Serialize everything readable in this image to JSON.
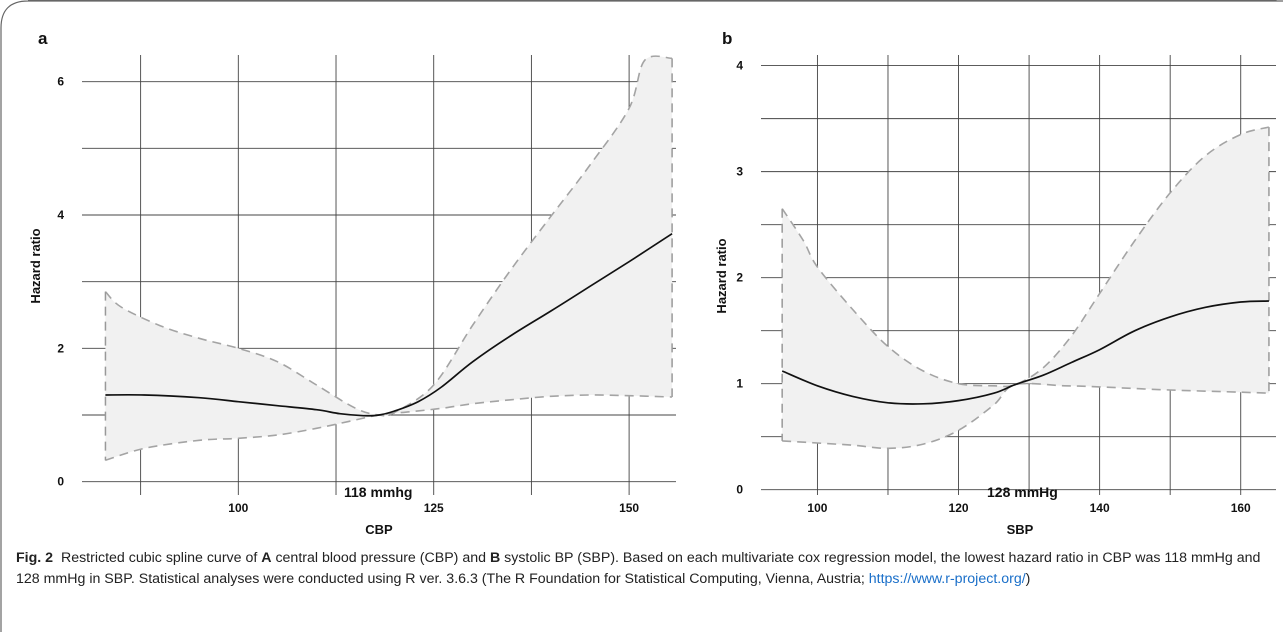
{
  "figure": {
    "panels": [
      {
        "letter": "a",
        "xlabel": "CBP",
        "ylabel": "Hazard ratio",
        "xticks": [
          {
            "value": 100,
            "label": "100"
          },
          {
            "value": 125,
            "label": "125"
          },
          {
            "value": 150,
            "label": "150"
          }
        ],
        "yticks": [
          {
            "value": 0,
            "label": "0"
          },
          {
            "value": 2,
            "label": "2"
          },
          {
            "value": 4,
            "label": "4"
          },
          {
            "value": 6,
            "label": "6"
          }
        ],
        "annotation": "118 mmhg"
      },
      {
        "letter": "b",
        "xlabel": "SBP",
        "ylabel": "Hazard ratio",
        "xticks": [
          {
            "value": 100,
            "label": "100"
          },
          {
            "value": 120,
            "label": "120"
          },
          {
            "value": 140,
            "label": "140"
          },
          {
            "value": 160,
            "label": "160"
          }
        ],
        "yticks": [
          {
            "value": 0,
            "label": "0"
          },
          {
            "value": 1,
            "label": "1"
          },
          {
            "value": 2,
            "label": "2"
          },
          {
            "value": 3,
            "label": "3"
          },
          {
            "value": 4,
            "label": "4"
          }
        ],
        "annotation": "128 mmHg"
      }
    ]
  },
  "caption": {
    "label": "Fig. 2",
    "seg1": "Restricted cubic spline curve of ",
    "bold_a": "A",
    "seg2": " central blood pressure (CBP) and ",
    "bold_b": "B",
    "seg3": " systolic BP (SBP). Based on each multivariate cox regression model, the lowest hazard ratio in CBP was 118 mmHg and 128 mmHg in SBP. Statistical analyses were conducted using R ver. 3.6.3 (The R Foundation for Statistical Computing, Vienna, Austria; ",
    "link": "https://www.r-project.org/",
    "seg4": ")"
  },
  "chart_data": [
    {
      "type": "line",
      "xlabel": "CBP",
      "ylabel": "Hazard ratio",
      "xlim": [
        80,
        156
      ],
      "ylim": [
        -0.2,
        6.4
      ],
      "grid": true,
      "series": [
        {
          "role": "estimate",
          "style": "solid",
          "x": [
            83,
            88,
            95,
            100,
            105,
            110,
            113,
            116,
            118,
            120,
            123,
            126,
            130,
            135,
            140,
            145,
            150,
            155.5
          ],
          "y": [
            1.3,
            1.3,
            1.26,
            1.2,
            1.14,
            1.08,
            1.02,
            0.99,
            1.0,
            1.06,
            1.2,
            1.42,
            1.8,
            2.2,
            2.56,
            2.93,
            3.3,
            3.72
          ]
        },
        {
          "role": "ci-upper",
          "style": "dashed",
          "x": [
            83,
            85,
            90,
            95,
            100,
            105,
            110,
            115,
            118,
            120,
            125,
            130,
            135,
            140,
            145,
            150,
            152,
            155.5
          ],
          "y": [
            2.85,
            2.62,
            2.34,
            2.15,
            2.0,
            1.8,
            1.45,
            1.1,
            1.0,
            1.04,
            1.45,
            2.35,
            3.2,
            3.98,
            4.75,
            5.6,
            6.32,
            6.35
          ]
        },
        {
          "role": "ci-lower",
          "style": "dashed",
          "x": [
            83,
            88,
            95,
            100,
            105,
            110,
            114,
            118,
            122,
            126,
            130,
            135,
            140,
            145,
            150,
            155.5
          ],
          "y": [
            0.32,
            0.5,
            0.62,
            0.65,
            0.7,
            0.8,
            0.9,
            1.0,
            1.05,
            1.1,
            1.17,
            1.23,
            1.28,
            1.3,
            1.29,
            1.27
          ]
        }
      ]
    },
    {
      "type": "line",
      "xlabel": "SBP",
      "ylabel": "Hazard ratio",
      "xlim": [
        92,
        165
      ],
      "ylim": [
        -0.05,
        4.1
      ],
      "grid": true,
      "series": [
        {
          "role": "estimate",
          "style": "solid",
          "x": [
            95,
            100,
            105,
            110,
            115,
            120,
            125,
            128,
            132,
            136,
            140,
            145,
            150,
            155,
            160,
            164
          ],
          "y": [
            1.12,
            0.98,
            0.88,
            0.82,
            0.81,
            0.84,
            0.91,
            0.99,
            1.08,
            1.2,
            1.32,
            1.5,
            1.63,
            1.72,
            1.77,
            1.78
          ]
        },
        {
          "role": "ci-upper",
          "style": "dashed",
          "x": [
            95,
            98,
            100,
            105,
            110,
            115,
            120,
            125,
            128,
            132,
            136,
            140,
            145,
            150,
            155,
            160,
            164
          ],
          "y": [
            2.65,
            2.35,
            2.1,
            1.7,
            1.35,
            1.12,
            1.0,
            0.98,
            0.99,
            1.15,
            1.45,
            1.85,
            2.35,
            2.8,
            3.15,
            3.35,
            3.42
          ]
        },
        {
          "role": "ci-lower",
          "style": "dashed",
          "x": [
            95,
            100,
            105,
            110,
            115,
            120,
            125,
            128,
            135,
            140,
            150,
            160,
            164
          ],
          "y": [
            0.46,
            0.44,
            0.42,
            0.39,
            0.43,
            0.56,
            0.8,
            0.99,
            0.98,
            0.97,
            0.94,
            0.92,
            0.91
          ]
        }
      ]
    }
  ]
}
